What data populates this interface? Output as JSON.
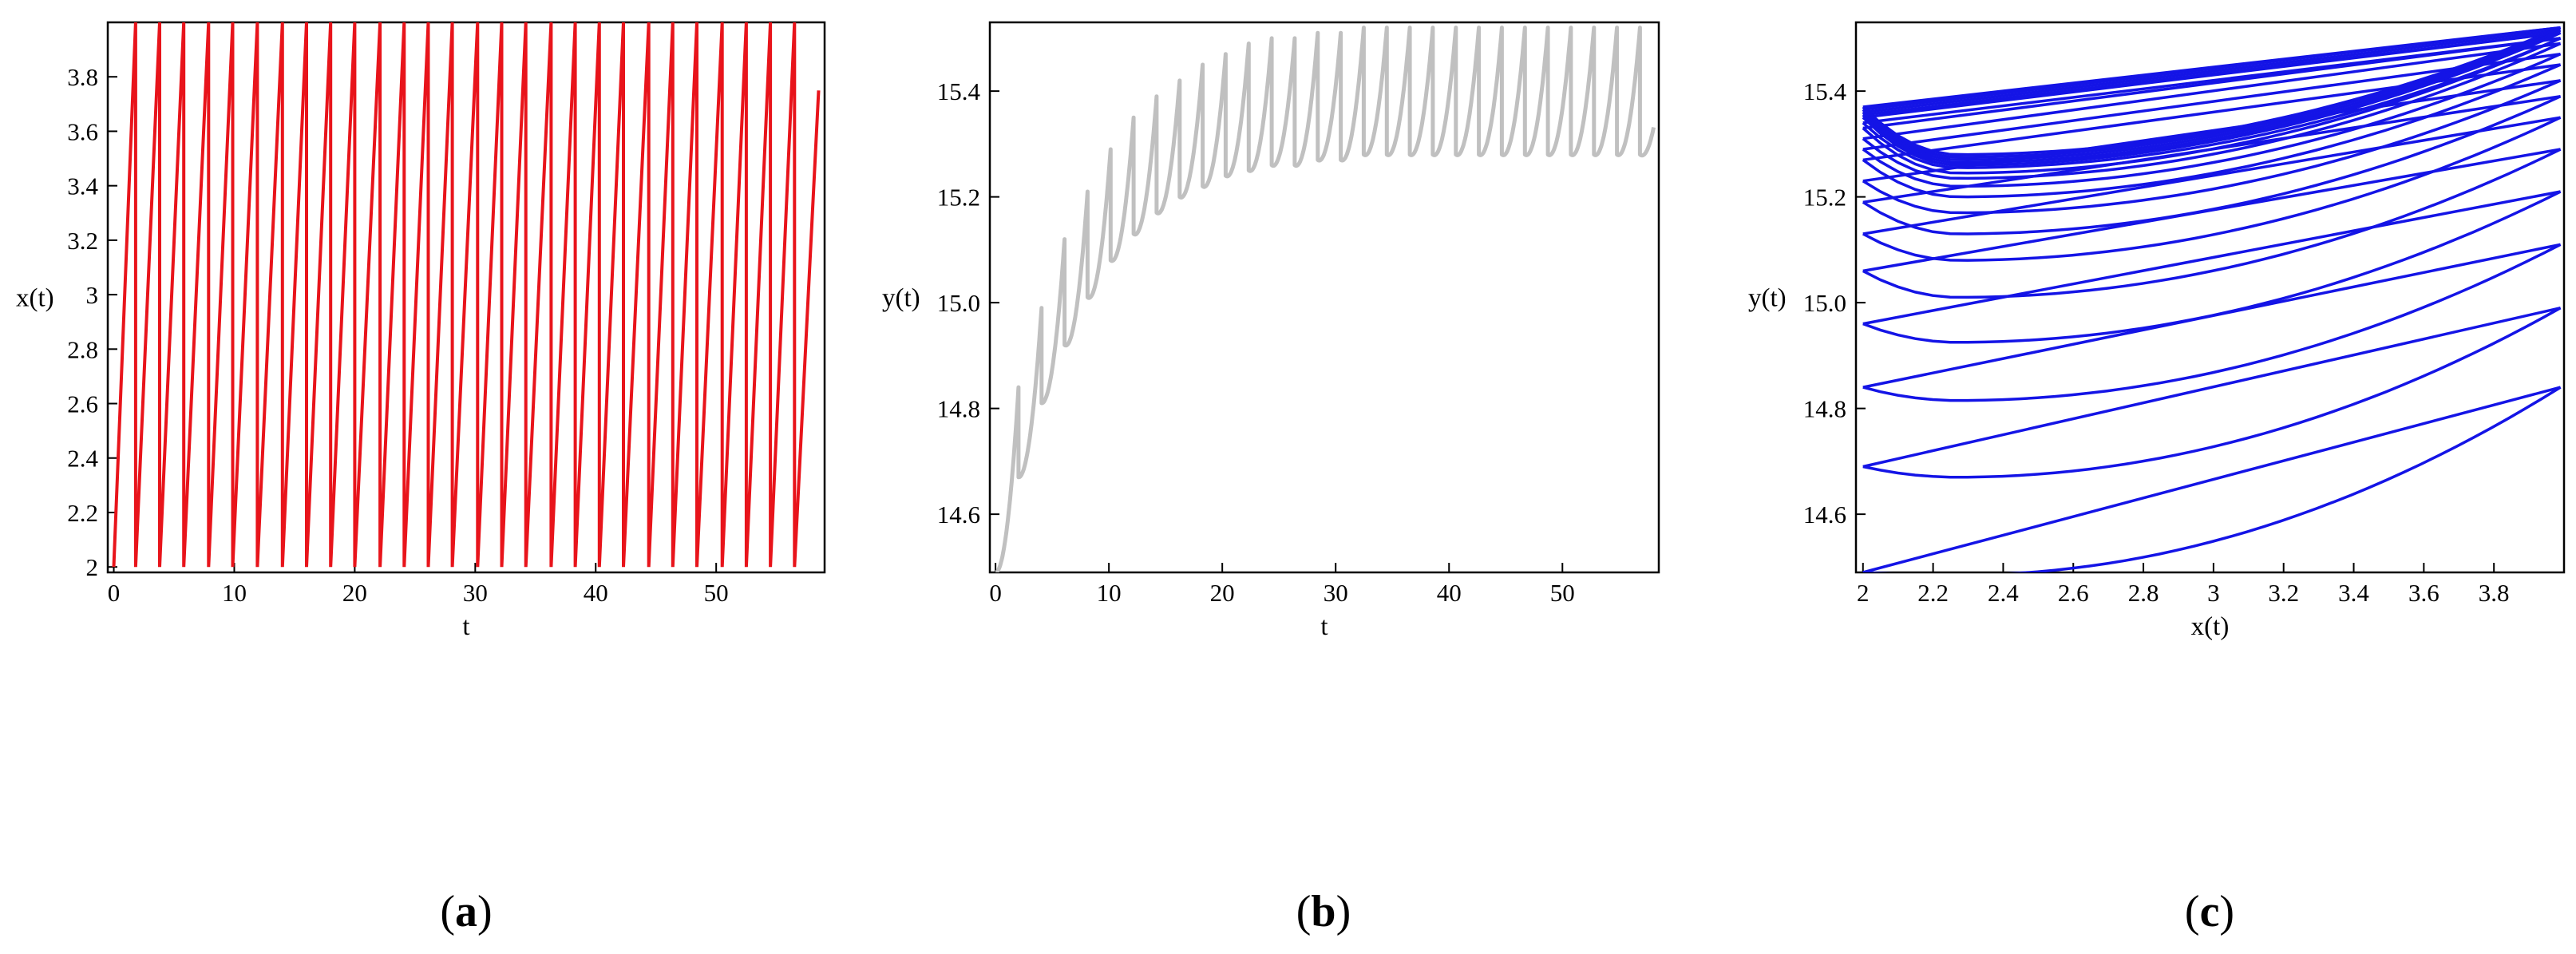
{
  "chart_data": [
    {
      "type": "line",
      "panel_label_open": "(",
      "panel_label_letter": "a",
      "panel_label_close": ")",
      "xlabel": "t",
      "ylabel": "x(t)",
      "xlim": [
        -0.5,
        59
      ],
      "ylim": [
        1.98,
        4.0
      ],
      "xticks": [
        "0",
        "10",
        "20",
        "30",
        "40",
        "50"
      ],
      "xtick_values": [
        0,
        10,
        20,
        30,
        40,
        50
      ],
      "yticks": [
        "2",
        "2.2",
        "2.4",
        "2.6",
        "2.8",
        "3",
        "3.2",
        "3.4",
        "3.6",
        "3.8"
      ],
      "ytick_values": [
        2,
        2.2,
        2.4,
        2.6,
        2.8,
        3,
        3.2,
        3.4,
        3.6,
        3.8
      ],
      "color": "#e8141b",
      "series": [
        {
          "x": [
            0,
            1.81,
            1.81,
            3.81,
            3.81,
            5.81,
            5.81,
            7.87,
            7.87,
            9.87,
            9.87,
            11.92,
            11.92,
            14.0,
            14.0,
            16.0,
            16.0,
            18.0,
            18.0,
            20.0,
            20.0,
            22.1,
            22.1,
            24.1,
            24.1,
            26.1,
            26.1,
            28.1,
            28.1,
            30.2,
            30.2,
            32.2,
            32.2,
            34.2,
            34.2,
            36.3,
            36.3,
            38.3,
            38.3,
            40.3,
            40.3,
            42.3,
            42.3,
            44.4,
            44.4,
            46.4,
            46.4,
            48.4,
            48.4,
            50.5,
            50.5,
            52.5,
            52.5,
            54.5,
            54.5,
            56.5,
            56.5,
            58.5
          ],
          "y": [
            2,
            4,
            2,
            4,
            2,
            4,
            2,
            4,
            2,
            4,
            2,
            4,
            2,
            4,
            2,
            4,
            2,
            4,
            2,
            4,
            2,
            4,
            2,
            4,
            2,
            4,
            2,
            4,
            2,
            4,
            2,
            4,
            2,
            4,
            2,
            4,
            2,
            4,
            2,
            4,
            2,
            4,
            2,
            4,
            2,
            4,
            2,
            4,
            2,
            4,
            2,
            4,
            2,
            4,
            2,
            4,
            2,
            3.75
          ]
        }
      ]
    },
    {
      "type": "line",
      "panel_label_open": "(",
      "panel_label_letter": "b",
      "panel_label_close": ")",
      "xlabel": "t",
      "ylabel": "y(t)",
      "xlim": [
        -0.5,
        58.5
      ],
      "ylim": [
        14.49,
        15.53
      ],
      "xticks": [
        "0",
        "10",
        "20",
        "30",
        "40",
        "50"
      ],
      "xtick_values": [
        0,
        10,
        20,
        30,
        40,
        50
      ],
      "yticks": [
        "14.6",
        "14.8",
        "15.0",
        "15.2",
        "15.4"
      ],
      "ytick_values": [
        14.6,
        14.8,
        15.0,
        15.2,
        15.4
      ],
      "color": "#c0c0c0",
      "cycle_period": 2.03,
      "cycle_count": 29,
      "cycle_start_y": [
        14.49,
        14.67,
        14.81,
        14.92,
        15.01,
        15.08,
        15.13,
        15.17,
        15.2,
        15.22,
        15.24,
        15.25,
        15.26,
        15.26,
        15.27,
        15.27,
        15.28,
        15.28,
        15.28,
        15.28,
        15.28,
        15.28,
        15.28,
        15.28,
        15.28,
        15.28,
        15.28,
        15.28,
        15.28
      ],
      "cycle_peak_y": [
        14.84,
        14.99,
        15.12,
        15.21,
        15.29,
        15.35,
        15.39,
        15.42,
        15.45,
        15.47,
        15.49,
        15.5,
        15.5,
        15.51,
        15.51,
        15.52,
        15.52,
        15.52,
        15.52,
        15.52,
        15.52,
        15.52,
        15.52,
        15.52,
        15.52,
        15.52,
        15.52,
        15.52,
        15.45
      ]
    },
    {
      "type": "line",
      "panel_label_open": "(",
      "panel_label_letter": "c",
      "panel_label_close": ")",
      "xlabel": "x(t)",
      "ylabel": "y(t)",
      "xlim": [
        1.98,
        4.0
      ],
      "ylim": [
        14.49,
        15.53
      ],
      "xticks": [
        "2",
        "2.2",
        "2.4",
        "2.6",
        "2.8",
        "3",
        "3.2",
        "3.4",
        "3.6",
        "3.8"
      ],
      "xtick_values": [
        2,
        2.2,
        2.4,
        2.6,
        2.8,
        3,
        3.2,
        3.4,
        3.6,
        3.8
      ],
      "yticks": [
        "14.6",
        "14.8",
        "15.0",
        "15.2",
        "15.4"
      ],
      "ytick_values": [
        14.6,
        14.8,
        15.0,
        15.2,
        15.4
      ],
      "color": "#1414e6",
      "loops": [
        {
          "start_y": 14.49,
          "end_y": 14.84,
          "min_y": 14.485
        },
        {
          "start_y": 14.69,
          "end_y": 14.99,
          "min_y": 14.67
        },
        {
          "start_y": 14.84,
          "end_y": 15.11,
          "min_y": 14.815
        },
        {
          "start_y": 14.96,
          "end_y": 15.21,
          "min_y": 14.925
        },
        {
          "start_y": 15.06,
          "end_y": 15.29,
          "min_y": 15.01
        },
        {
          "start_y": 15.13,
          "end_y": 15.35,
          "min_y": 15.08
        },
        {
          "start_y": 15.19,
          "end_y": 15.39,
          "min_y": 15.13
        },
        {
          "start_y": 15.23,
          "end_y": 15.42,
          "min_y": 15.17
        },
        {
          "start_y": 15.27,
          "end_y": 15.45,
          "min_y": 15.2
        },
        {
          "start_y": 15.29,
          "end_y": 15.47,
          "min_y": 15.22
        },
        {
          "start_y": 15.31,
          "end_y": 15.49,
          "min_y": 15.235
        },
        {
          "start_y": 15.33,
          "end_y": 15.5,
          "min_y": 15.245
        },
        {
          "start_y": 15.34,
          "end_y": 15.5,
          "min_y": 15.255
        },
        {
          "start_y": 15.35,
          "end_y": 15.51,
          "min_y": 15.26
        },
        {
          "start_y": 15.355,
          "end_y": 15.51,
          "min_y": 15.265
        },
        {
          "start_y": 15.36,
          "end_y": 15.515,
          "min_y": 15.27
        },
        {
          "start_y": 15.365,
          "end_y": 15.52,
          "min_y": 15.275
        },
        {
          "start_y": 15.37,
          "end_y": 15.52,
          "min_y": 15.28
        }
      ]
    }
  ]
}
